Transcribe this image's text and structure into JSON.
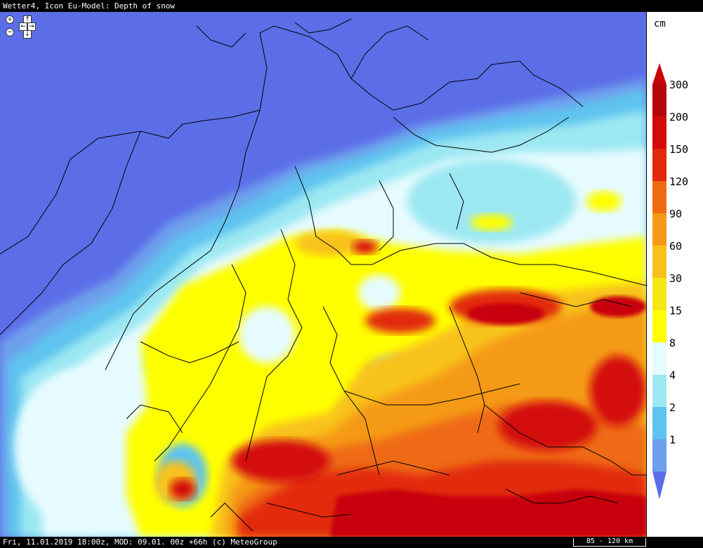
{
  "header": {
    "title": "Wetter4, Icon Eu-Model: Depth of snow"
  },
  "navigation": {
    "zoom_in": "+",
    "zoom_out": "−",
    "pan_up": "↑",
    "pan_down": "↓",
    "pan_left": "←",
    "pan_right": "→"
  },
  "legend": {
    "unit": "cm",
    "levels": [
      {
        "label": "300",
        "color": "#b5070b"
      },
      {
        "label": "200",
        "color": "#d40a0a"
      },
      {
        "label": "150",
        "color": "#e2290c"
      },
      {
        "label": "120",
        "color": "#ef6a13"
      },
      {
        "label": "90",
        "color": "#f59a16"
      },
      {
        "label": "60",
        "color": "#f8c21a"
      },
      {
        "label": "30",
        "color": "#f5e614"
      },
      {
        "label": "15",
        "color": "#ffff00"
      },
      {
        "label": "8",
        "color": "#e6fbff"
      },
      {
        "label": "4",
        "color": "#9ce8f2"
      },
      {
        "label": "2",
        "color": "#5fc3ef"
      },
      {
        "label": "1",
        "color": "#6ea0ec"
      }
    ],
    "top_color": "#c8050a",
    "bottom_color": "#5b6ee8"
  },
  "map": {
    "background_color": "#5b6ee8",
    "border_color": "#000000"
  },
  "footer": {
    "caption": "Fri, 11.01.2019 18:00z, MOD: 09.01. 00z +66h (c) MeteoGroup",
    "scale": "85 - 120 km"
  }
}
